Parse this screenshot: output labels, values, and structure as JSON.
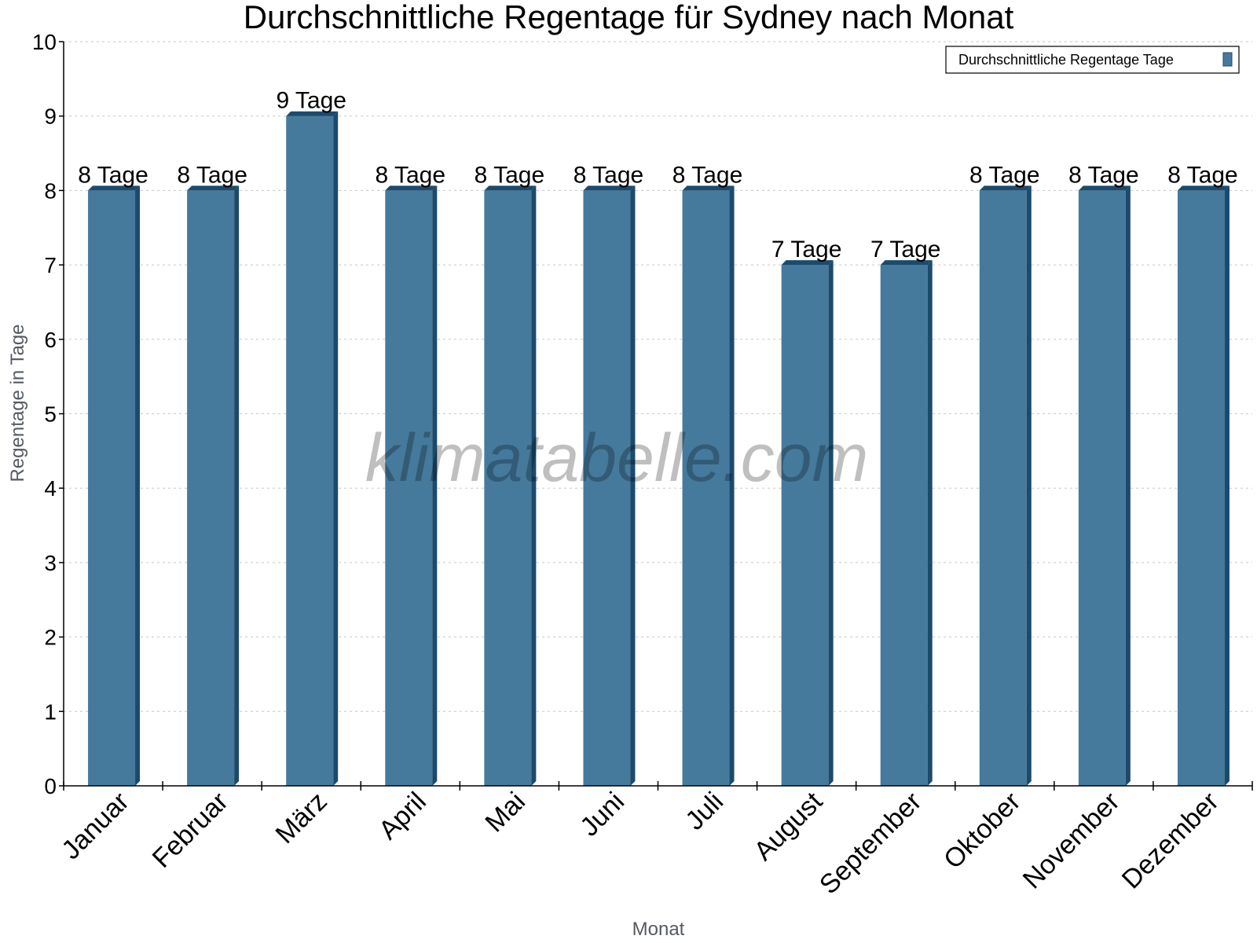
{
  "chart_data": {
    "type": "bar",
    "title": "Durchschnittliche Regentage für Sydney nach Monat",
    "xlabel": "Monat",
    "ylabel": "Regentage in Tage",
    "ylim": [
      0,
      10
    ],
    "yticks": [
      0,
      1,
      2,
      3,
      4,
      5,
      6,
      7,
      8,
      9,
      10
    ],
    "grid": true,
    "legend_position": "top-right",
    "categories": [
      "Januar",
      "Februar",
      "März",
      "April",
      "Mai",
      "Juni",
      "Juli",
      "August",
      "September",
      "Oktober",
      "November",
      "Dezember"
    ],
    "series": [
      {
        "name": "Durchschnittliche Regentage Tage",
        "values": [
          8,
          8,
          9,
          8,
          8,
          8,
          8,
          7,
          7,
          8,
          8,
          8
        ],
        "data_labels": [
          "8 Tage",
          "8 Tage",
          "9 Tage",
          "8 Tage",
          "8 Tage",
          "8 Tage",
          "8 Tage",
          "7 Tage",
          "7 Tage",
          "8 Tage",
          "8 Tage",
          "8 Tage"
        ],
        "color": "#457a9c",
        "side_color": "#1b4a6c"
      }
    ],
    "watermark": "klimatabelle.com"
  }
}
